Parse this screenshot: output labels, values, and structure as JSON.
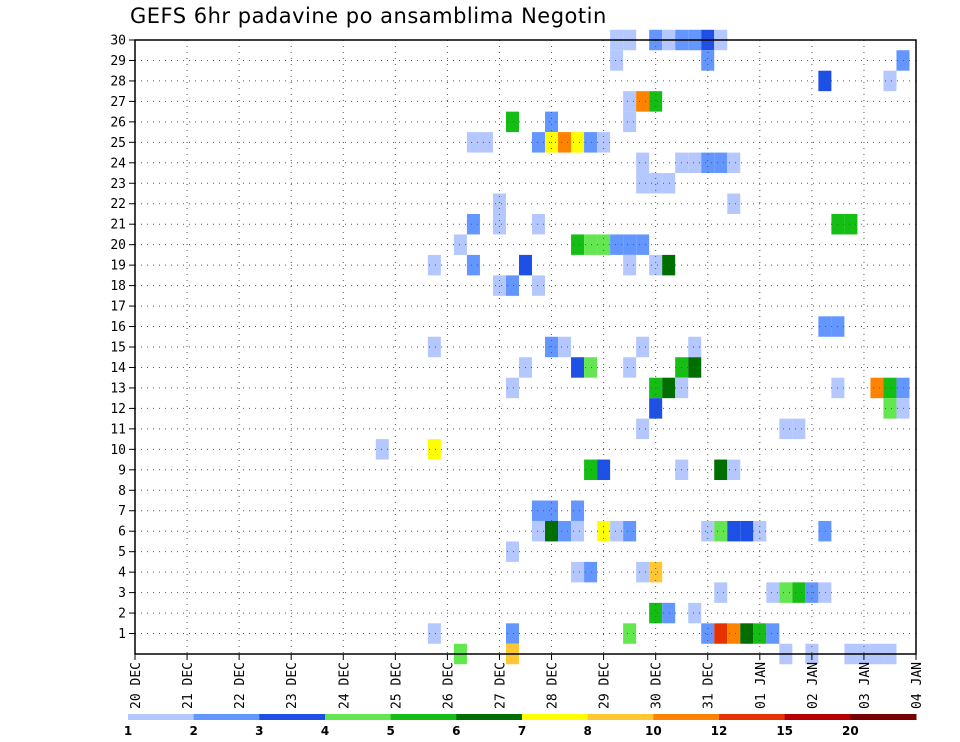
{
  "chart_data": {
    "type": "heatmap",
    "title": "GEFS 6hr padavine po ansamblima Negotin",
    "xlabel": "",
    "ylabel": "",
    "x_tick_labels": [
      "20 DEC",
      "21 DEC",
      "22 DEC",
      "23 DEC",
      "24 DEC",
      "25 DEC",
      "26 DEC",
      "27 DEC",
      "28 DEC",
      "29 DEC",
      "30 DEC",
      "31 DEC",
      "01 JAN",
      "02 JAN",
      "03 JAN",
      "04 JAN"
    ],
    "x_unit": "day index from 20 DEC (each day = 4 steps of 6 hr)",
    "y_tick_labels": [
      1,
      2,
      3,
      4,
      5,
      6,
      7,
      8,
      9,
      10,
      11,
      12,
      13,
      14,
      15,
      16,
      17,
      18,
      19,
      20,
      21,
      22,
      23,
      24,
      25,
      26,
      27,
      28,
      29,
      30
    ],
    "xlim": [
      0,
      15
    ],
    "ylim": [
      0,
      30
    ],
    "grid": true,
    "colorbar": {
      "levels": [
        "1",
        "2",
        "3",
        "4",
        "5",
        "6",
        "7",
        "8",
        "10",
        "12",
        "15",
        "20"
      ],
      "colors": [
        "#b4c8ff",
        "#6496ff",
        "#1e50e6",
        "#64e650",
        "#14be14",
        "#006e00",
        "#ffff00",
        "#ffc832",
        "#ff8200",
        "#e63200",
        "#b40000",
        "#780000"
      ]
    },
    "cells": [
      [
        9.25,
        30,
        1
      ],
      [
        9.5,
        30,
        1
      ],
      [
        10.0,
        30,
        2
      ],
      [
        10.25,
        30,
        1
      ],
      [
        10.5,
        30,
        2
      ],
      [
        10.75,
        30,
        2
      ],
      [
        11.0,
        30,
        3
      ],
      [
        11.25,
        30,
        1
      ],
      [
        9.25,
        29,
        1
      ],
      [
        11.0,
        29,
        2
      ],
      [
        14.75,
        29,
        2
      ],
      [
        13.25,
        28,
        3
      ],
      [
        14.5,
        28,
        1
      ],
      [
        9.5,
        27,
        1
      ],
      [
        9.75,
        27,
        9
      ],
      [
        10.0,
        27,
        5
      ],
      [
        7.25,
        26,
        5
      ],
      [
        8.0,
        26,
        2
      ],
      [
        9.5,
        26,
        1
      ],
      [
        6.5,
        25,
        1
      ],
      [
        6.75,
        25,
        1
      ],
      [
        7.75,
        25,
        2
      ],
      [
        8.0,
        25,
        7
      ],
      [
        8.25,
        25,
        9
      ],
      [
        8.5,
        25,
        7
      ],
      [
        8.75,
        25,
        2
      ],
      [
        9.0,
        25,
        1
      ],
      [
        9.75,
        24,
        1
      ],
      [
        10.5,
        24,
        1
      ],
      [
        10.75,
        24,
        1
      ],
      [
        11.0,
        24,
        2
      ],
      [
        11.25,
        24,
        2
      ],
      [
        11.5,
        24,
        1
      ],
      [
        9.75,
        23,
        1
      ],
      [
        10.0,
        23,
        1
      ],
      [
        10.25,
        23,
        1
      ],
      [
        7.0,
        22,
        1
      ],
      [
        11.5,
        22,
        1
      ],
      [
        6.5,
        21,
        2
      ],
      [
        7.0,
        21,
        1
      ],
      [
        7.75,
        21,
        1
      ],
      [
        13.5,
        21,
        5
      ],
      [
        13.75,
        21,
        5
      ],
      [
        6.25,
        20,
        1
      ],
      [
        8.5,
        20,
        5
      ],
      [
        8.75,
        20,
        4
      ],
      [
        9.0,
        20,
        4
      ],
      [
        9.25,
        20,
        2
      ],
      [
        9.5,
        20,
        2
      ],
      [
        9.75,
        20,
        2
      ],
      [
        5.75,
        19,
        1
      ],
      [
        6.5,
        19,
        2
      ],
      [
        7.5,
        19,
        3
      ],
      [
        9.5,
        19,
        1
      ],
      [
        10.0,
        19,
        1
      ],
      [
        10.25,
        19,
        6
      ],
      [
        7.0,
        18,
        1
      ],
      [
        7.25,
        18,
        2
      ],
      [
        7.75,
        18,
        1
      ],
      [
        13.25,
        16,
        2
      ],
      [
        13.5,
        16,
        2
      ],
      [
        5.75,
        15,
        1
      ],
      [
        8.0,
        15,
        2
      ],
      [
        8.25,
        15,
        1
      ],
      [
        9.75,
        15,
        1
      ],
      [
        10.75,
        15,
        1
      ],
      [
        7.5,
        14,
        1
      ],
      [
        8.5,
        14,
        3
      ],
      [
        8.75,
        14,
        4
      ],
      [
        9.5,
        14,
        1
      ],
      [
        10.5,
        14,
        5
      ],
      [
        10.75,
        14,
        6
      ],
      [
        7.25,
        13,
        1
      ],
      [
        10.0,
        13,
        5
      ],
      [
        10.25,
        13,
        6
      ],
      [
        10.5,
        13,
        1
      ],
      [
        13.5,
        13,
        1
      ],
      [
        14.25,
        13,
        9
      ],
      [
        14.5,
        13,
        5
      ],
      [
        14.75,
        13,
        2
      ],
      [
        10.0,
        12,
        3
      ],
      [
        14.5,
        12,
        4
      ],
      [
        14.75,
        12,
        1
      ],
      [
        9.75,
        11,
        1
      ],
      [
        12.5,
        11,
        1
      ],
      [
        12.75,
        11,
        1
      ],
      [
        4.75,
        10,
        1
      ],
      [
        5.75,
        10,
        7
      ],
      [
        8.75,
        9,
        5
      ],
      [
        9.0,
        9,
        3
      ],
      [
        10.5,
        9,
        1
      ],
      [
        11.25,
        9,
        6
      ],
      [
        11.5,
        9,
        1
      ],
      [
        7.75,
        7,
        2
      ],
      [
        8.0,
        7,
        2
      ],
      [
        8.5,
        7,
        2
      ],
      [
        7.75,
        6,
        1
      ],
      [
        8.0,
        6,
        6
      ],
      [
        8.25,
        6,
        2
      ],
      [
        8.5,
        6,
        1
      ],
      [
        9.0,
        6,
        7
      ],
      [
        9.25,
        6,
        1
      ],
      [
        9.5,
        6,
        2
      ],
      [
        11.0,
        6,
        1
      ],
      [
        11.25,
        6,
        4
      ],
      [
        11.5,
        6,
        3
      ],
      [
        11.75,
        6,
        3
      ],
      [
        12.0,
        6,
        1
      ],
      [
        13.25,
        6,
        2
      ],
      [
        7.25,
        5,
        1
      ],
      [
        8.5,
        4,
        1
      ],
      [
        8.75,
        4,
        2
      ],
      [
        9.75,
        4,
        1
      ],
      [
        10.0,
        4,
        8
      ],
      [
        11.25,
        3,
        1
      ],
      [
        12.25,
        3,
        1
      ],
      [
        12.5,
        3,
        4
      ],
      [
        12.75,
        3,
        5
      ],
      [
        13.0,
        3,
        2
      ],
      [
        13.25,
        3,
        1
      ],
      [
        10.0,
        2,
        5
      ],
      [
        10.25,
        2,
        2
      ],
      [
        10.75,
        2,
        1
      ],
      [
        5.75,
        1,
        1
      ],
      [
        7.25,
        1,
        2
      ],
      [
        9.5,
        1,
        4
      ],
      [
        11.0,
        1,
        2
      ],
      [
        11.25,
        1,
        10
      ],
      [
        11.5,
        1,
        9
      ],
      [
        11.75,
        1,
        6
      ],
      [
        12.0,
        1,
        5
      ],
      [
        12.25,
        1,
        2
      ],
      [
        6.25,
        0,
        4
      ],
      [
        7.25,
        0,
        8
      ],
      [
        12.5,
        0,
        1
      ],
      [
        13.0,
        0,
        1
      ],
      [
        13.75,
        0,
        1
      ],
      [
        14.0,
        0,
        1
      ],
      [
        14.25,
        0,
        1
      ],
      [
        14.5,
        0,
        1
      ]
    ]
  }
}
